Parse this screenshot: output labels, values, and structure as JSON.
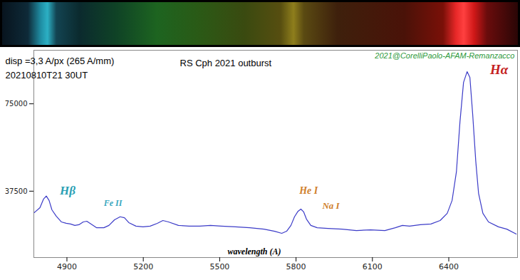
{
  "chart_data": {
    "type": "line",
    "title": "RS Cph 2021 outburst",
    "subtitle": "disp =3,3 A/px (265 A/mm)",
    "date": "20210810T21 30UT",
    "credit": "2021@CorelliPaolo-AFAM-Remanzacco",
    "xlabel": "wavelength (A)",
    "x": [
      4772,
      4794,
      4808,
      4819,
      4830,
      4841,
      4858,
      4878,
      4897,
      4914,
      4931,
      4947,
      4964,
      4978,
      4995,
      5017,
      5045,
      5065,
      5087,
      5109,
      5126,
      5143,
      5171,
      5199,
      5227,
      5255,
      5277,
      5299,
      5338,
      5380,
      5422,
      5464,
      5506,
      5562,
      5618,
      5674,
      5716,
      5744,
      5763,
      5780,
      5794,
      5808,
      5819,
      5830,
      5841,
      5858,
      5883,
      5925,
      5981,
      6037,
      6093,
      6149,
      6190,
      6218,
      6246,
      6288,
      6330,
      6366,
      6394,
      6413,
      6430,
      6444,
      6458,
      6472,
      6483,
      6494,
      6506,
      6517,
      6534,
      6556,
      6595,
      6628,
      6665
    ],
    "values": [
      28300,
      30400,
      34100,
      35400,
      33500,
      29500,
      26800,
      24300,
      23700,
      23400,
      22800,
      23100,
      24300,
      24600,
      23400,
      21800,
      21800,
      22800,
      25200,
      26500,
      26100,
      24000,
      22500,
      22200,
      22500,
      23700,
      24900,
      24300,
      22800,
      22500,
      22500,
      22800,
      22500,
      22200,
      21800,
      21200,
      20300,
      19400,
      20300,
      22800,
      26500,
      28900,
      29800,
      28600,
      25500,
      22800,
      21800,
      21500,
      21200,
      20600,
      20900,
      20600,
      21800,
      22800,
      22500,
      23100,
      23400,
      24900,
      28000,
      33500,
      45800,
      67300,
      84200,
      88800,
      86300,
      70400,
      50400,
      36600,
      28000,
      24300,
      22200,
      21200,
      19100
    ],
    "color": "#3c3cc8",
    "xlim": [
      4770,
      6670
    ],
    "ylim": [
      9000,
      98000
    ],
    "xticks": [
      4900,
      5200,
      5500,
      5800,
      6100,
      6400
    ],
    "yticks": [
      37500,
      75000
    ],
    "grid": false,
    "annotations": [
      {
        "text": "Hβ",
        "x": 4872,
        "y": 35900,
        "color": "#2a9fb4"
      },
      {
        "text": "Fe II",
        "x": 5045,
        "y": 30400,
        "color": "#3aa8c0"
      },
      {
        "text": "He I",
        "x": 5813,
        "y": 35900,
        "color": "#d0802c"
      },
      {
        "text": "Na I",
        "x": 5903,
        "y": 29500,
        "color": "#d0802c"
      },
      {
        "text": "Hα",
        "x": 6562,
        "y": 87800,
        "color": "#c41e1e"
      }
    ]
  }
}
